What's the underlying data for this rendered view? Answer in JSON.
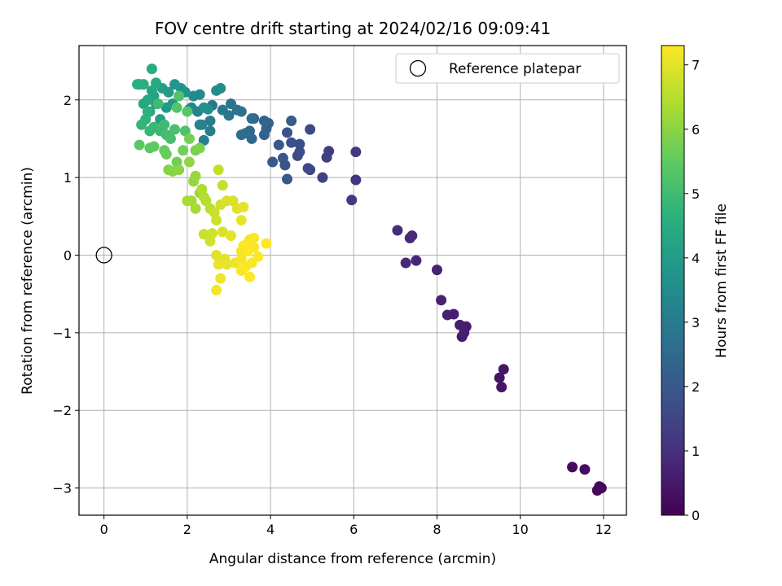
{
  "chart_data": {
    "type": "scatter",
    "title": "FOV centre drift starting at 2024/02/16 09:09:41",
    "xlabel": "Angular distance from reference (arcmin)",
    "ylabel": "Rotation from reference (arcmin)",
    "xlim": [
      -0.6,
      12.55
    ],
    "ylim": [
      -3.35,
      2.7
    ],
    "xticks": [
      0,
      2,
      4,
      6,
      8,
      10,
      12
    ],
    "xtick_labels": [
      "0",
      "2",
      "4",
      "6",
      "8",
      "10",
      "12"
    ],
    "yticks": [
      -3,
      -2,
      -1,
      0,
      1,
      2
    ],
    "ytick_labels": [
      "−3",
      "−2",
      "−1",
      "0",
      "1",
      "2"
    ],
    "grid": true,
    "legend": {
      "position": "top-right",
      "entries": [
        "Reference platepar"
      ]
    },
    "reference_point": {
      "x": 0,
      "y": 0,
      "label": "Reference platepar"
    },
    "colorbar": {
      "label": "Hours from first FF file",
      "min": 0,
      "max": 7.3,
      "ticks": [
        0,
        1,
        2,
        3,
        4,
        5,
        6,
        7
      ],
      "tick_labels": [
        "0",
        "1",
        "2",
        "3",
        "4",
        "5",
        "6",
        "7"
      ],
      "colormap": "viridis"
    },
    "points": [
      [
        11.9,
        -3.0,
        0.1
      ],
      [
        11.95,
        -3.0,
        0.12
      ],
      [
        11.85,
        -3.03,
        0.14
      ],
      [
        11.9,
        -2.98,
        0.15
      ],
      [
        11.25,
        -2.73,
        0.2
      ],
      [
        11.55,
        -2.76,
        0.25
      ],
      [
        9.5,
        -1.58,
        0.4
      ],
      [
        9.55,
        -1.7,
        0.42
      ],
      [
        9.6,
        -1.47,
        0.45
      ],
      [
        8.6,
        -1.05,
        0.55
      ],
      [
        8.7,
        -0.92,
        0.57
      ],
      [
        8.55,
        -0.9,
        0.6
      ],
      [
        8.65,
        -1.0,
        0.62
      ],
      [
        8.4,
        -0.76,
        0.65
      ],
      [
        8.25,
        -0.77,
        0.67
      ],
      [
        8.1,
        -0.58,
        0.7
      ],
      [
        8.0,
        -0.19,
        0.72
      ],
      [
        7.5,
        -0.07,
        0.8
      ],
      [
        7.25,
        -0.1,
        0.82
      ],
      [
        7.35,
        0.22,
        0.85
      ],
      [
        7.4,
        0.25,
        0.87
      ],
      [
        7.05,
        0.32,
        0.9
      ],
      [
        6.05,
        0.97,
        1.1
      ],
      [
        5.95,
        0.71,
        1.15
      ],
      [
        6.05,
        1.33,
        1.2
      ],
      [
        5.4,
        1.34,
        1.3
      ],
      [
        5.35,
        1.26,
        1.35
      ],
      [
        5.25,
        1.0,
        1.4
      ],
      [
        4.95,
        1.1,
        1.5
      ],
      [
        4.9,
        1.12,
        1.55
      ],
      [
        4.95,
        1.62,
        1.6
      ],
      [
        4.65,
        1.28,
        1.65
      ],
      [
        4.7,
        1.33,
        1.7
      ],
      [
        4.7,
        1.43,
        1.75
      ],
      [
        4.5,
        1.45,
        1.8
      ],
      [
        4.4,
        1.58,
        1.85
      ],
      [
        4.35,
        1.16,
        1.9
      ],
      [
        4.3,
        1.25,
        1.95
      ],
      [
        4.4,
        0.98,
        2.0
      ],
      [
        4.2,
        1.42,
        2.05
      ],
      [
        4.05,
        1.2,
        2.1
      ],
      [
        4.5,
        1.73,
        2.15
      ],
      [
        3.95,
        1.7,
        2.2
      ],
      [
        3.9,
        1.63,
        2.25
      ],
      [
        3.85,
        1.55,
        2.3
      ],
      [
        3.85,
        1.73,
        2.35
      ],
      [
        3.6,
        1.76,
        2.4
      ],
      [
        3.55,
        1.5,
        2.45
      ],
      [
        3.5,
        1.6,
        2.5
      ],
      [
        3.4,
        1.57,
        2.55
      ],
      [
        3.3,
        1.55,
        2.6
      ],
      [
        3.55,
        1.76,
        2.65
      ],
      [
        3.3,
        1.85,
        2.7
      ],
      [
        3.2,
        1.87,
        2.75
      ],
      [
        3.05,
        1.95,
        2.8
      ],
      [
        3.0,
        1.8,
        2.85
      ],
      [
        2.85,
        1.87,
        2.9
      ],
      [
        2.6,
        1.93,
        2.95
      ],
      [
        2.55,
        1.73,
        3.0
      ],
      [
        2.55,
        1.6,
        3.05
      ],
      [
        2.4,
        1.48,
        3.1
      ],
      [
        2.35,
        1.68,
        3.15
      ],
      [
        2.3,
        1.68,
        3.2
      ],
      [
        2.25,
        1.85,
        3.25
      ],
      [
        2.1,
        1.9,
        3.3
      ],
      [
        2.05,
        1.88,
        3.35
      ],
      [
        2.3,
        2.07,
        3.4
      ],
      [
        2.15,
        2.05,
        3.45
      ],
      [
        2.7,
        2.12,
        3.5
      ],
      [
        2.8,
        2.15,
        3.55
      ],
      [
        2.5,
        1.88,
        3.6
      ],
      [
        2.4,
        1.9,
        3.65
      ],
      [
        1.95,
        2.1,
        3.7
      ],
      [
        1.85,
        2.15,
        3.75
      ],
      [
        1.7,
        2.2,
        3.8
      ],
      [
        1.65,
        1.95,
        3.85
      ],
      [
        1.5,
        1.9,
        3.9
      ],
      [
        1.55,
        2.1,
        3.95
      ],
      [
        1.4,
        2.15,
        4.0
      ],
      [
        1.25,
        1.95,
        4.05
      ],
      [
        1.35,
        1.75,
        4.1
      ],
      [
        1.1,
        1.85,
        4.15
      ],
      [
        1.2,
        2.05,
        4.2
      ],
      [
        1.15,
        2.12,
        4.25
      ],
      [
        0.95,
        1.95,
        4.3
      ],
      [
        1.05,
        2.0,
        4.35
      ],
      [
        0.85,
        2.2,
        4.4
      ],
      [
        1.25,
        2.22,
        4.45
      ],
      [
        1.15,
        2.4,
        4.5
      ],
      [
        0.95,
        2.2,
        4.55
      ],
      [
        0.8,
        2.2,
        4.6
      ],
      [
        1.05,
        1.85,
        4.65
      ],
      [
        1.0,
        1.75,
        4.7
      ],
      [
        0.9,
        1.68,
        4.75
      ],
      [
        1.1,
        1.6,
        4.8
      ],
      [
        1.2,
        1.65,
        4.85
      ],
      [
        1.35,
        1.6,
        4.9
      ],
      [
        1.45,
        1.68,
        4.95
      ],
      [
        1.3,
        1.95,
        5.0
      ],
      [
        1.5,
        1.55,
        5.05
      ],
      [
        1.6,
        1.5,
        5.1
      ],
      [
        1.7,
        1.62,
        5.15
      ],
      [
        1.95,
        1.6,
        5.2
      ],
      [
        1.8,
        2.05,
        5.25
      ],
      [
        1.75,
        1.9,
        5.3
      ],
      [
        2.0,
        1.85,
        5.35
      ],
      [
        0.85,
        1.42,
        5.4
      ],
      [
        1.1,
        1.38,
        5.45
      ],
      [
        1.2,
        1.4,
        5.5
      ],
      [
        1.45,
        1.35,
        5.55
      ],
      [
        1.5,
        1.3,
        5.6
      ],
      [
        1.75,
        1.2,
        5.65
      ],
      [
        1.9,
        1.35,
        5.7
      ],
      [
        2.05,
        1.5,
        5.75
      ],
      [
        2.2,
        1.35,
        5.8
      ],
      [
        2.3,
        1.38,
        5.85
      ],
      [
        1.55,
        1.1,
        5.9
      ],
      [
        1.65,
        1.08,
        5.95
      ],
      [
        1.8,
        1.1,
        6.0
      ],
      [
        2.05,
        1.2,
        6.05
      ],
      [
        2.15,
        0.95,
        6.1
      ],
      [
        2.2,
        1.02,
        6.15
      ],
      [
        2.3,
        0.8,
        6.2
      ],
      [
        2.1,
        0.7,
        6.25
      ],
      [
        2.2,
        0.6,
        6.3
      ],
      [
        2.0,
        0.7,
        6.35
      ],
      [
        2.35,
        0.85,
        6.4
      ],
      [
        2.4,
        0.75,
        6.45
      ],
      [
        2.45,
        0.7,
        6.5
      ],
      [
        2.55,
        0.6,
        6.55
      ],
      [
        2.75,
        1.1,
        6.6
      ],
      [
        2.85,
        0.9,
        6.65
      ],
      [
        2.65,
        0.55,
        6.7
      ],
      [
        2.7,
        0.45,
        6.75
      ],
      [
        2.8,
        0.65,
        6.8
      ],
      [
        2.95,
        0.7,
        6.85
      ],
      [
        3.1,
        0.7,
        6.9
      ],
      [
        3.2,
        0.6,
        6.95
      ],
      [
        3.35,
        0.62,
        7.0
      ],
      [
        3.3,
        0.45,
        7.05
      ],
      [
        2.4,
        0.27,
        6.7
      ],
      [
        2.6,
        0.28,
        6.75
      ],
      [
        2.55,
        0.18,
        6.8
      ],
      [
        2.85,
        0.3,
        6.9
      ],
      [
        3.05,
        0.25,
        7.0
      ],
      [
        2.7,
        0.0,
        6.95
      ],
      [
        2.9,
        -0.05,
        7.0
      ],
      [
        2.95,
        -0.12,
        7.05
      ],
      [
        2.75,
        -0.12,
        7.1
      ],
      [
        3.15,
        -0.1,
        7.1
      ],
      [
        3.3,
        0.05,
        7.15
      ],
      [
        3.45,
        0.15,
        7.2
      ],
      [
        3.5,
        0.2,
        7.2
      ],
      [
        3.6,
        0.1,
        7.22
      ],
      [
        3.3,
        -0.05,
        7.25
      ],
      [
        3.4,
        -0.15,
        7.25
      ],
      [
        3.55,
        -0.1,
        7.26
      ],
      [
        3.7,
        -0.02,
        7.27
      ],
      [
        3.5,
        -0.28,
        7.28
      ],
      [
        3.3,
        -0.2,
        7.28
      ],
      [
        2.8,
        -0.3,
        7.15
      ],
      [
        2.7,
        -0.45,
        7.2
      ],
      [
        3.6,
        0.22,
        7.28
      ],
      [
        3.35,
        0.12,
        7.3
      ],
      [
        3.9,
        0.15,
        7.3
      ],
      [
        3.45,
        0.05,
        7.3
      ]
    ]
  }
}
